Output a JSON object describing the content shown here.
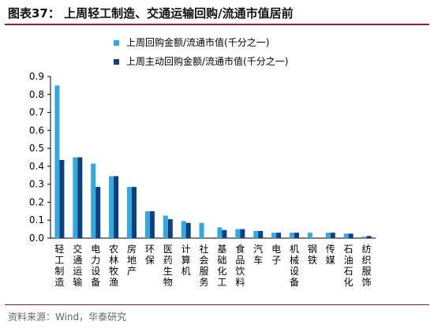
{
  "header": {
    "title": "图表37： 上周轻工制造、交通运输回购/流通市值居前"
  },
  "footer": {
    "source": "资料来源：Wind，华泰研究"
  },
  "colors": {
    "series1": "#31a9e3",
    "series2": "#0f3f7c",
    "accent": "#9b1b2f"
  },
  "chart_data": {
    "type": "bar",
    "categories": [
      "轻工制造",
      "交通运输",
      "电力设备",
      "农林牧渔",
      "房地产",
      "环保",
      "医药生物",
      "计算机",
      "社会服务",
      "基础化工",
      "食品饮料",
      "汽车",
      "电子",
      "机械设备",
      "钢铁",
      "传媒",
      "石油石化",
      "纺织服饰"
    ],
    "series": [
      {
        "name": "上周回购金额/流通市值(千分之一)",
        "values": [
          0.85,
          0.45,
          0.415,
          0.345,
          0.285,
          0.15,
          0.125,
          0.095,
          0.085,
          0.06,
          0.05,
          0.04,
          0.03,
          0.03,
          0.03,
          0.03,
          0.025,
          0.008
        ]
      },
      {
        "name": "上周主动回购金额/流通市值(千分之一)",
        "values": [
          0.435,
          0.45,
          0.285,
          0.345,
          0.285,
          0.15,
          0.105,
          0.085,
          0.0,
          0.045,
          0.05,
          0.04,
          0.03,
          0.03,
          0.0,
          0.03,
          0.025,
          0.012
        ]
      }
    ],
    "ylim": [
      0,
      0.9
    ],
    "yticks": [
      "0.0",
      "0.1",
      "0.2",
      "0.3",
      "0.4",
      "0.5",
      "0.6",
      "0.7",
      "0.8",
      "0.9"
    ],
    "legend": "top-left",
    "grid": false
  }
}
